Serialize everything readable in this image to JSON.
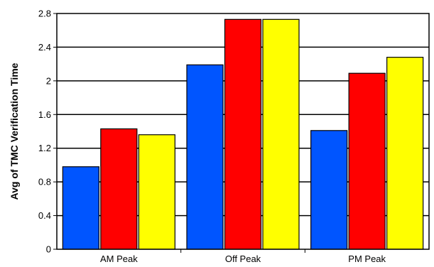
{
  "chart_data": {
    "type": "bar",
    "title": "",
    "xlabel": "",
    "ylabel": "Avg of TMC Verification Time",
    "ylim": [
      0,
      2.8
    ],
    "yticks": [
      "0",
      "0.4",
      "0.8",
      "1.2",
      "1.6",
      "2",
      "2.4",
      "2.8"
    ],
    "categories": [
      "AM Peak",
      "Off Peak",
      "PM Peak"
    ],
    "grid": true,
    "legend": "none",
    "series": [
      {
        "color": "#0055ff",
        "values": [
          0.98,
          2.19,
          1.41
        ]
      },
      {
        "color": "#ff0000",
        "values": [
          1.43,
          2.73,
          2.09
        ]
      },
      {
        "color": "#ffff00",
        "values": [
          1.36,
          2.73,
          2.28
        ]
      }
    ]
  }
}
